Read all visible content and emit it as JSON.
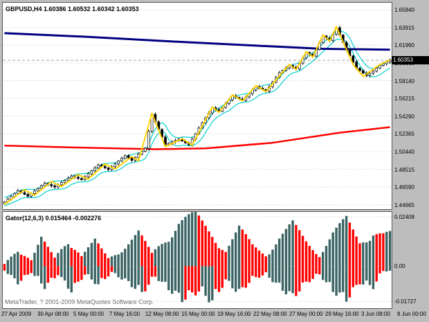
{
  "header": {
    "symbol_label": "GBPUSD,H4 1.60386 1.60532 1.60342 1.60353"
  },
  "footer": {
    "copyright": "MetaTrader, ? 2001-2009 MetaQuotes Software Corp."
  },
  "colors": {
    "background": "#bdbdbd",
    "pane_bg": "#ffffff",
    "grid": "#cdcdcd",
    "candle_up_fill": "#ffffff",
    "candle_down_fill": "#000000",
    "candle_stroke": "#000000",
    "ma_navy": "#000080",
    "ma_red": "#ff0000",
    "zigzag_yellow": "#ffd400",
    "band_cyan": "#00cfcf",
    "price_line": "#9f9f9f",
    "price_tag_bg": "#000000",
    "price_tag_text": "#ffffff",
    "gator_rising": "#3a6363",
    "gator_falling": "#ff0000"
  },
  "chart_data": {
    "type": "candlestick",
    "title": "GBPUSD H4 with Gator oscillator",
    "main_pane": {
      "ylim": [
        1.442,
        1.666
      ],
      "axis_values": [
        1.6584,
        1.63915,
        1.6199,
        1.60065,
        1.5814,
        1.56215,
        1.5429,
        1.52365,
        1.5044,
        1.48515,
        1.4659,
        1.44665
      ],
      "current_price": 1.60353,
      "current_price_label": "1.60353",
      "closes": [
        1.45,
        1.453,
        1.456,
        1.459,
        1.462,
        1.46,
        1.458,
        1.456,
        1.4588,
        1.4616,
        1.4644,
        1.4672,
        1.47,
        1.4687,
        1.4673,
        1.466,
        1.4684,
        1.4708,
        1.4732,
        1.4756,
        1.478,
        1.4767,
        1.4753,
        1.474,
        1.4772,
        1.4804,
        1.4836,
        1.4868,
        1.49,
        1.4883,
        1.4867,
        1.485,
        1.488,
        1.491,
        1.494,
        1.497,
        1.5,
        1.4975,
        1.495,
        1.4983,
        1.5015,
        1.5048,
        1.508,
        1.5265,
        1.545,
        1.5368,
        1.5285,
        1.5203,
        1.512,
        1.5135,
        1.515,
        1.5165,
        1.518,
        1.516,
        1.514,
        1.512,
        1.518,
        1.524,
        1.53,
        1.5355,
        1.541,
        1.5465,
        1.552,
        1.55,
        1.548,
        1.5523,
        1.5565,
        1.5608,
        1.565,
        1.5633,
        1.5617,
        1.56,
        1.5638,
        1.5675,
        1.5713,
        1.575,
        1.5733,
        1.5717,
        1.57,
        1.575,
        1.58,
        1.585,
        1.59,
        1.5927,
        1.5953,
        1.598,
        1.596,
        1.594,
        1.6,
        1.606,
        1.612,
        1.61,
        1.608,
        1.6153,
        1.6227,
        1.63,
        1.6275,
        1.625,
        1.632,
        1.639,
        1.631,
        1.623,
        1.615,
        1.6083,
        1.6017,
        1.595,
        1.5923,
        1.5897,
        1.587,
        1.5895,
        1.592,
        1.595,
        1.598,
        1.5998,
        1.6017,
        1.6035
      ],
      "ma_navy_anchors": [
        [
          0,
          1.633
        ],
        [
          25,
          1.629
        ],
        [
          50,
          1.624
        ],
        [
          75,
          1.6195
        ],
        [
          95,
          1.616
        ],
        [
          115,
          1.615
        ]
      ],
      "ma_red_anchors": [
        [
          0,
          1.511
        ],
        [
          20,
          1.509
        ],
        [
          45,
          1.507
        ],
        [
          60,
          1.508
        ],
        [
          80,
          1.514
        ],
        [
          100,
          1.525
        ],
        [
          115,
          1.531
        ]
      ],
      "zigzag_yellow_anchors": [
        [
          0,
          1.447
        ],
        [
          6,
          1.463
        ],
        [
          9,
          1.457
        ],
        [
          14,
          1.472
        ],
        [
          17,
          1.4665
        ],
        [
          22,
          1.4795
        ],
        [
          25,
          1.4745
        ],
        [
          30,
          1.491
        ],
        [
          33,
          1.4855
        ],
        [
          38,
          1.499
        ],
        [
          40,
          1.4945
        ],
        [
          44,
          1.546
        ],
        [
          48,
          1.5095
        ],
        [
          53,
          1.5185
        ],
        [
          56,
          1.5115
        ],
        [
          62,
          1.553
        ],
        [
          64,
          1.547
        ],
        [
          68,
          1.566
        ],
        [
          71,
          1.5595
        ],
        [
          75,
          1.576
        ],
        [
          78,
          1.5695
        ],
        [
          85,
          1.599
        ],
        [
          87,
          1.5935
        ],
        [
          90,
          1.613
        ],
        [
          92,
          1.607
        ],
        [
          95,
          1.631
        ],
        [
          97,
          1.6245
        ],
        [
          99,
          1.64
        ],
        [
          104,
          1.599
        ],
        [
          107,
          1.586
        ],
        [
          112,
          1.599
        ],
        [
          115,
          1.604
        ]
      ],
      "band_offset": 0.0045,
      "band_window": 5
    },
    "indicator_pane": {
      "label": "Gator(12,6,3) 0.015464 -0.002276",
      "ylim": [
        -0.0205,
        0.0265
      ],
      "axis": [
        {
          "value": 0.02408,
          "label": "0.02408"
        },
        {
          "value": 0,
          "label": "0.00"
        },
        {
          "value": -0.01727,
          "label": "-0.01727"
        }
      ],
      "upper_anchors": [
        [
          0,
          0.001
        ],
        [
          4,
          0.009
        ],
        [
          8,
          0.003
        ],
        [
          11,
          0.013
        ],
        [
          15,
          0.004
        ],
        [
          19,
          0.014
        ],
        [
          23,
          0.005
        ],
        [
          27,
          0.012
        ],
        [
          31,
          0.004
        ],
        [
          36,
          0.01
        ],
        [
          40,
          0.016
        ],
        [
          44,
          0.006
        ],
        [
          48,
          0.014
        ],
        [
          52,
          0.022
        ],
        [
          57,
          0.024
        ],
        [
          62,
          0.016
        ],
        [
          66,
          0.008
        ],
        [
          70,
          0.018
        ],
        [
          74,
          0.01
        ],
        [
          78,
          0.006
        ],
        [
          82,
          0.014
        ],
        [
          86,
          0.02
        ],
        [
          90,
          0.012
        ],
        [
          94,
          0.006
        ],
        [
          98,
          0.016
        ],
        [
          102,
          0.022
        ],
        [
          106,
          0.012
        ],
        [
          110,
          0.018
        ],
        [
          113,
          0.0155
        ],
        [
          115,
          0.0155
        ]
      ],
      "lower_anchors": [
        [
          0,
          0.002
        ],
        [
          4,
          0.008
        ],
        [
          8,
          0.003
        ],
        [
          12,
          0.01
        ],
        [
          16,
          0.004
        ],
        [
          20,
          0.012
        ],
        [
          24,
          0.004
        ],
        [
          28,
          0.009
        ],
        [
          32,
          0.003
        ],
        [
          37,
          0.008
        ],
        [
          41,
          0.013
        ],
        [
          45,
          0.005
        ],
        [
          49,
          0.011
        ],
        [
          53,
          0.016
        ],
        [
          58,
          0.012
        ],
        [
          62,
          0.017
        ],
        [
          66,
          0.007
        ],
        [
          70,
          0.013
        ],
        [
          74,
          0.006
        ],
        [
          78,
          0.004
        ],
        [
          82,
          0.01
        ],
        [
          86,
          0.015
        ],
        [
          90,
          0.008
        ],
        [
          94,
          0.004
        ],
        [
          98,
          0.012
        ],
        [
          102,
          0.016
        ],
        [
          106,
          0.008
        ],
        [
          110,
          0.01
        ],
        [
          113,
          0.0023
        ],
        [
          115,
          0.0023
        ]
      ]
    },
    "time_axis": {
      "labels": [
        "27 Apr 2009",
        "30 Apr 08:00",
        "5 May 00:00",
        "7 May 16:00",
        "12 May 08:00",
        "15 May 00:00",
        "19 May 16:00",
        "22 May 08:00",
        "27 May 00:00",
        "29 May 16:00",
        "3 Jun 08:00",
        "8 Jun 00:00"
      ]
    }
  }
}
